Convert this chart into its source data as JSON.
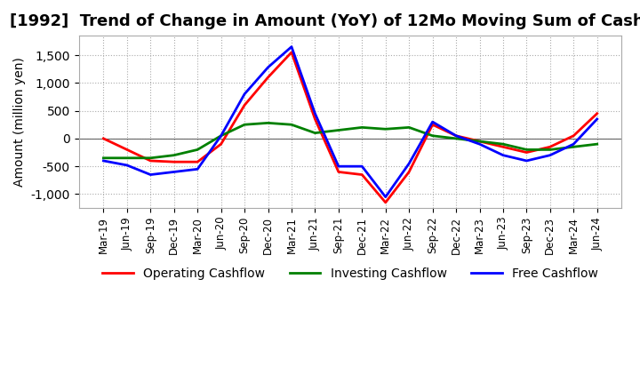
{
  "title": "[1992]  Trend of Change in Amount (YoY) of 12Mo Moving Sum of Cashflows",
  "ylabel": "Amount (million yen)",
  "xlabels": [
    "Mar-19",
    "Jun-19",
    "Sep-19",
    "Dec-19",
    "Mar-20",
    "Jun-20",
    "Sep-20",
    "Dec-20",
    "Mar-21",
    "Jun-21",
    "Sep-21",
    "Dec-21",
    "Mar-22",
    "Jun-22",
    "Sep-22",
    "Dec-22",
    "Mar-23",
    "Jun-23",
    "Sep-23",
    "Dec-23",
    "Mar-24",
    "Jun-24"
  ],
  "operating_cashflow": [
    0,
    -200,
    -400,
    -420,
    -420,
    -100,
    600,
    1100,
    1550,
    350,
    -600,
    -650,
    -1150,
    -600,
    250,
    50,
    -50,
    -150,
    -250,
    -150,
    50,
    450
  ],
  "investing_cashflow": [
    -350,
    -350,
    -350,
    -300,
    -200,
    50,
    250,
    280,
    250,
    100,
    150,
    200,
    170,
    200,
    50,
    0,
    -50,
    -100,
    -200,
    -200,
    -150,
    -100
  ],
  "free_cashflow": [
    -400,
    -480,
    -650,
    -600,
    -550,
    50,
    800,
    1280,
    1650,
    450,
    -500,
    -500,
    -1050,
    -450,
    300,
    50,
    -100,
    -300,
    -400,
    -300,
    -100,
    350
  ],
  "operating_color": "#ff0000",
  "investing_color": "#008000",
  "free_color": "#0000ff",
  "ylim": [
    -1250,
    1850
  ],
  "yticks": [
    -1000,
    -500,
    0,
    500,
    1000,
    1500
  ],
  "grid_color": "#aaaaaa",
  "background_color": "#ffffff",
  "title_fontsize": 13,
  "axis_fontsize": 10,
  "tick_fontsize": 8.5,
  "legend_fontsize": 10,
  "linewidth": 2.0
}
